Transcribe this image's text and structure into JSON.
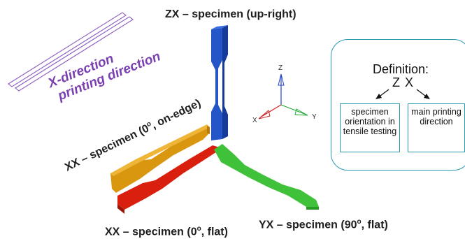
{
  "labels": {
    "zx": "ZX – specimen (up-right)",
    "xx_edge_prefix": "XX – specimen (0",
    "xx_edge_sup": "o",
    "xx_edge_suffix": ", on-edge)",
    "xx_flat_prefix": "XX – specimen (0",
    "xx_flat_sup": "o",
    "xx_flat_suffix": ", flat)",
    "yx_prefix": "YX – specimen (90",
    "yx_sup": "o",
    "yx_suffix": ", flat)"
  },
  "x_direction": {
    "line1": "X-direction",
    "line2": "printing direction"
  },
  "axes": {
    "z": "Z",
    "y": "Y",
    "x": "X"
  },
  "definition": {
    "title": "Definition:",
    "code": "Z X",
    "left_box": "specimen orientation in tensile testing",
    "right_box": "main printing direction"
  },
  "colors": {
    "zx_specimen": "#2456c8",
    "xx_edge_specimen": "#d9970f",
    "xx_flat_specimen": "#d9200f",
    "yx_specimen": "#3fc23a",
    "x_direction_text": "#7a3fb0",
    "definition_border": "#2a9ab0"
  }
}
